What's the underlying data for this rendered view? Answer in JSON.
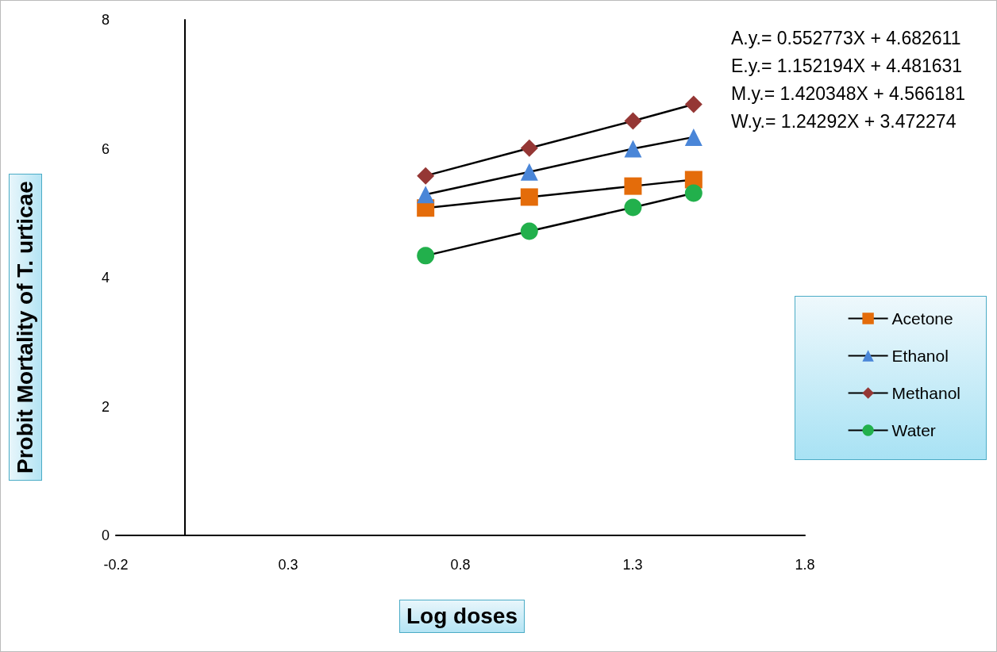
{
  "chart_data": {
    "type": "line",
    "xlabel": "Log doses",
    "ylabel": "Probit Mortality of T. urticae",
    "x": [
      0.699,
      1,
      1.301,
      1.477
    ],
    "series": [
      {
        "name": "Acetone",
        "color": "#e46c0a",
        "marker": "square",
        "values": [
          5.08,
          5.25,
          5.42,
          5.52
        ]
      },
      {
        "name": "Ethanol",
        "color": "#4a86d8",
        "marker": "triangle",
        "values": [
          5.29,
          5.64,
          6.0,
          6.18
        ]
      },
      {
        "name": "Methanol",
        "color": "#953735",
        "marker": "diamond",
        "values": [
          5.58,
          6.01,
          6.43,
          6.69
        ]
      },
      {
        "name": "Water",
        "color": "#22b04c",
        "marker": "circle",
        "values": [
          4.34,
          4.72,
          5.09,
          5.31
        ]
      }
    ],
    "xlim": [
      -0.2,
      1.8
    ],
    "xticks": [
      -0.2,
      0.3,
      0.8,
      1.3,
      1.8
    ],
    "ylim": [
      0,
      8
    ],
    "yticks": [
      0,
      2,
      4,
      6,
      8
    ],
    "grid": false,
    "legend": "right",
    "annotations": [
      "A.y.=  0.552773X + 4.682611",
      "E.y.=  1.152194X + 4.481631",
      "M.y.= 1.420348X + 4.566181",
      "W.y.= 1.24292X  + 3.472274"
    ]
  }
}
